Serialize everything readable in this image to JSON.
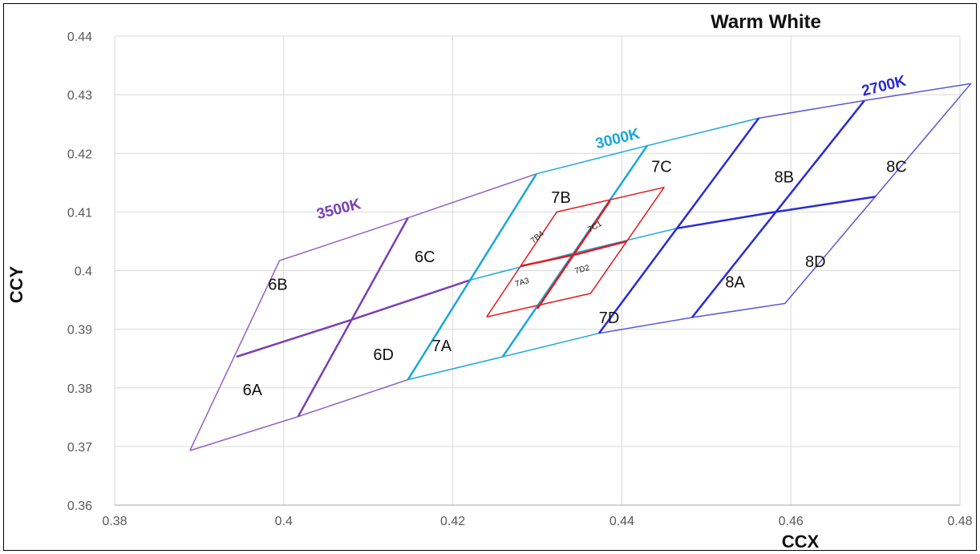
{
  "chart_data": {
    "type": "line",
    "title": "Warm White",
    "xlabel": "CCX",
    "ylabel": "CCY",
    "xlim": [
      0.38,
      0.48
    ],
    "ylim": [
      0.36,
      0.44
    ],
    "x_ticks": [
      "0.38",
      "0.4",
      "0.42",
      "0.44",
      "0.46",
      "0.48"
    ],
    "y_ticks": [
      "0.36",
      "0.37",
      "0.38",
      "0.39",
      "0.4",
      "0.41",
      "0.42",
      "0.43",
      "0.44"
    ],
    "grid": true,
    "colors": {
      "cct_3500": "#7b3fb5",
      "cct_3000": "#1aa7d9",
      "cct_2700": "#2a2ad6",
      "sub_bins": "#e0191f"
    },
    "cct_labels": [
      {
        "text": "3500K",
        "x": 0.4065,
        "y": 0.4105,
        "angle": -14,
        "color": "#7b3fb5"
      },
      {
        "text": "3000K",
        "x": 0.4395,
        "y": 0.4225,
        "angle": -14,
        "color": "#1aa7d9"
      },
      {
        "text": "2700K",
        "x": 0.471,
        "y": 0.4315,
        "angle": -14,
        "color": "#2a2ad6"
      }
    ],
    "bin_labels": [
      {
        "text": "6B",
        "x": 0.3993,
        "y": 0.3977
      },
      {
        "text": "6A",
        "x": 0.3963,
        "y": 0.3797
      },
      {
        "text": "6C",
        "x": 0.4167,
        "y": 0.4024
      },
      {
        "text": "6D",
        "x": 0.4118,
        "y": 0.3857
      },
      {
        "text": "7A",
        "x": 0.4187,
        "y": 0.3872
      },
      {
        "text": "7B",
        "x": 0.4328,
        "y": 0.4125
      },
      {
        "text": "7C",
        "x": 0.4447,
        "y": 0.4178
      },
      {
        "text": "7D",
        "x": 0.4385,
        "y": 0.392
      },
      {
        "text": "8A",
        "x": 0.4534,
        "y": 0.3981
      },
      {
        "text": "8B",
        "x": 0.4592,
        "y": 0.416
      },
      {
        "text": "8C",
        "x": 0.4725,
        "y": 0.4178
      },
      {
        "text": "8D",
        "x": 0.4629,
        "y": 0.4016
      }
    ],
    "sub_bin_labels": [
      {
        "text": "7B4",
        "x": 0.43,
        "y": 0.4057,
        "angle": -40
      },
      {
        "text": "7C1",
        "x": 0.4368,
        "y": 0.4075,
        "angle": -30
      },
      {
        "text": "7A3",
        "x": 0.4282,
        "y": 0.398,
        "angle": -15
      },
      {
        "text": "7D2",
        "x": 0.4353,
        "y": 0.4002,
        "angle": -15
      }
    ],
    "series": [
      {
        "color": "#8e63c7",
        "width": 1.5,
        "points": [
          [
            0.3889,
            0.3693
          ],
          [
            0.3995,
            0.4017
          ],
          [
            0.4147,
            0.409
          ],
          [
            0.4299,
            0.4165
          ]
        ]
      },
      {
        "color": "#8e63c7",
        "width": 1.5,
        "points": [
          [
            0.3889,
            0.3693
          ],
          [
            0.4017,
            0.3751
          ],
          [
            0.4147,
            0.3814
          ]
        ]
      },
      {
        "color": "#7b3fb5",
        "width": 2.5,
        "points": [
          [
            0.3944,
            0.3853
          ],
          [
            0.408,
            0.3916
          ],
          [
            0.4221,
            0.3984
          ]
        ]
      },
      {
        "color": "#7b3fb5",
        "width": 2.5,
        "points": [
          [
            0.4017,
            0.3751
          ],
          [
            0.4147,
            0.409
          ]
        ]
      },
      {
        "color": "#1aa7d9",
        "width": 1.5,
        "points": [
          [
            0.4147,
            0.3814
          ],
          [
            0.4259,
            0.3853
          ],
          [
            0.4373,
            0.3893
          ]
        ]
      },
      {
        "color": "#1aa7d9",
        "width": 1.5,
        "points": [
          [
            0.4299,
            0.4165
          ],
          [
            0.443,
            0.4213
          ],
          [
            0.4562,
            0.426
          ]
        ]
      },
      {
        "color": "#1aa7d9",
        "width": 1.5,
        "points": [
          [
            0.4221,
            0.3984
          ],
          [
            0.4338,
            0.4028
          ],
          [
            0.4465,
            0.4072
          ]
        ]
      },
      {
        "color": "#1aa7d9",
        "width": 2.5,
        "points": [
          [
            0.4147,
            0.3814
          ],
          [
            0.4299,
            0.4165
          ]
        ]
      },
      {
        "color": "#1aa7d9",
        "width": 2.5,
        "points": [
          [
            0.4259,
            0.3853
          ],
          [
            0.443,
            0.4213
          ]
        ]
      },
      {
        "color": "#5b57d6",
        "width": 1.5,
        "points": [
          [
            0.4373,
            0.3893
          ],
          [
            0.4483,
            0.392
          ],
          [
            0.4593,
            0.3944
          ],
          [
            0.4813,
            0.4319
          ],
          [
            0.4687,
            0.429
          ],
          [
            0.4562,
            0.426
          ]
        ]
      },
      {
        "color": "#2a2ad6",
        "width": 2.5,
        "points": [
          [
            0.4465,
            0.4072
          ],
          [
            0.4577,
            0.4099
          ],
          [
            0.47,
            0.4126
          ]
        ]
      },
      {
        "color": "#2a2ad6",
        "width": 2.5,
        "points": [
          [
            0.4373,
            0.3893
          ],
          [
            0.4562,
            0.426
          ]
        ]
      },
      {
        "color": "#2a2ad6",
        "width": 2.5,
        "points": [
          [
            0.4483,
            0.392
          ],
          [
            0.4687,
            0.429
          ]
        ]
      },
      {
        "color": "#e0191f",
        "width": 1.5,
        "points": [
          [
            0.424,
            0.3921
          ],
          [
            0.4363,
            0.3961
          ],
          [
            0.445,
            0.4142
          ],
          [
            0.4323,
            0.41
          ],
          [
            0.424,
            0.3921
          ]
        ]
      },
      {
        "color": "#e0191f",
        "width": 2.5,
        "points": [
          [
            0.4281,
            0.4008
          ],
          [
            0.4347,
            0.4028
          ],
          [
            0.4406,
            0.405
          ]
        ]
      },
      {
        "color": "#e0191f",
        "width": 2.5,
        "points": [
          [
            0.43,
            0.3935
          ],
          [
            0.4386,
            0.4119
          ]
        ]
      }
    ]
  }
}
